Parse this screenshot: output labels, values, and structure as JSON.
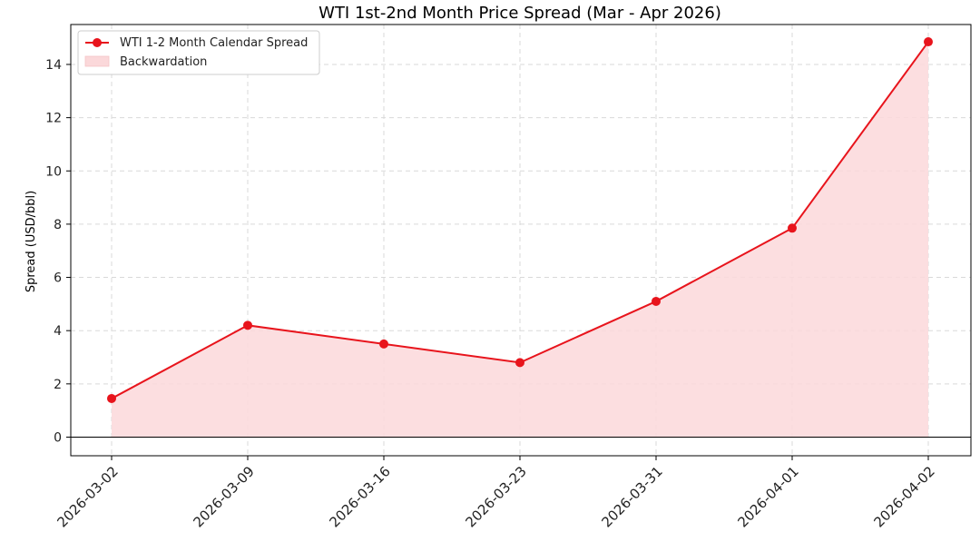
{
  "chart_data": {
    "type": "line",
    "title": "WTI 1st-2nd Month Price Spread (Mar - Apr 2026)",
    "xlabel": "",
    "ylabel": "Spread (USD/bbl)",
    "categories": [
      "2026-03-02",
      "2026-03-09",
      "2026-03-16",
      "2026-03-23",
      "2026-03-31",
      "2026-04-01",
      "2026-04-02"
    ],
    "series": [
      {
        "name": "WTI 1-2 Month Calendar Spread",
        "values": [
          1.45,
          4.2,
          3.5,
          2.8,
          5.1,
          7.85,
          14.85
        ],
        "color": "#e8141c"
      }
    ],
    "fill_label": "Backwardation",
    "fill_color": "#fbd8da",
    "ylim": [
      -0.7,
      15.5
    ],
    "yticks": [
      0,
      2,
      4,
      6,
      8,
      10,
      12,
      14
    ],
    "grid": true,
    "legend_position": "top-left",
    "zero_line": true
  }
}
